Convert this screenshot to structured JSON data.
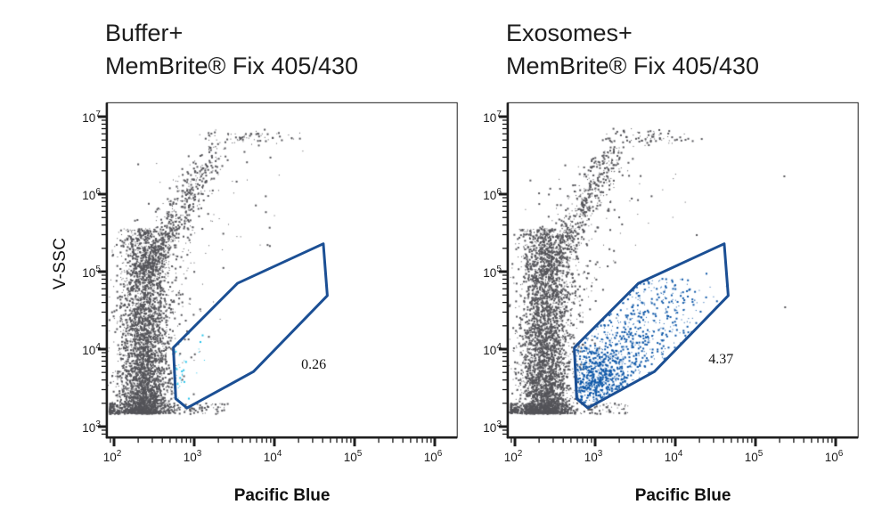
{
  "figure": {
    "background": "#ffffff",
    "axis_color": "#1f1f1f",
    "text_color": "#1c1c1c",
    "tick_base": "10"
  },
  "chart_data": [
    {
      "type": "scatter",
      "title_line1": "Buffer+",
      "title_line2": "MemBrite® Fix 405/430",
      "xlabel": "Pacific Blue",
      "ylabel": "V-SSC",
      "x_scale": "log10",
      "y_scale": "log10",
      "x_ticks_exp": [
        2,
        3,
        4,
        5,
        6
      ],
      "y_ticks_exp": [
        3,
        4,
        5,
        6,
        7
      ],
      "x_range_exp": [
        1.91,
        6.28
      ],
      "y_range_exp": [
        2.86,
        7.18
      ],
      "grid": false,
      "dot_color_ungated": "#545459",
      "dot_color_gated": "#25c3ea",
      "gate": {
        "label": "0.26",
        "color": "#1b4f94",
        "vertices_exp": [
          [
            2.74,
            4.02
          ],
          [
            3.54,
            4.85
          ],
          [
            4.61,
            5.36
          ],
          [
            4.66,
            4.69
          ],
          [
            3.74,
            3.71
          ],
          [
            2.91,
            3.24
          ],
          [
            2.77,
            3.36
          ]
        ],
        "label_pos_exp": [
          4.49,
          3.79
        ]
      },
      "populations": [
        {
          "name": "main-band",
          "kind": "vband",
          "count": 3600,
          "x_mu": 2.38,
          "x_sigma": 0.155,
          "x_clip": [
            1.92,
            2.79
          ],
          "y_min": 3.17,
          "y_max": 5.55,
          "y_shape": 1.65,
          "seed": 11,
          "gated": false
        },
        {
          "name": "floor",
          "kind": "floor",
          "count": 300,
          "x_min": 1.95,
          "x_max": 3.42,
          "x_shape": 2.4,
          "y_min": 3.16,
          "y_max": 3.3,
          "seed": 12,
          "gated": false
        },
        {
          "name": "arm",
          "kind": "diagonal",
          "count": 620,
          "from": [
            2.42,
            4.95
          ],
          "to": [
            3.3,
            6.68
          ],
          "spread": [
            0.1,
            0.14
          ],
          "t_shape": 1.3,
          "seed": 13,
          "gated": false
        },
        {
          "name": "plateau",
          "kind": "gauss",
          "count": 55,
          "mu": [
            3.82,
            6.73
          ],
          "sigma": [
            0.27,
            0.045
          ],
          "x_clip": [
            3.3,
            4.35
          ],
          "seed": 14,
          "gated": false
        },
        {
          "name": "halo",
          "kind": "gauss",
          "count": 230,
          "mu": [
            2.62,
            4.7
          ],
          "sigma": [
            0.28,
            0.6
          ],
          "seed": 15,
          "gated": false
        },
        {
          "name": "upper-sparse",
          "kind": "gauss",
          "count": 45,
          "mu": [
            3.2,
            5.9
          ],
          "sigma": [
            0.5,
            0.35
          ],
          "seed": 16,
          "gated": false
        },
        {
          "name": "gated-events",
          "kind": "mixture",
          "count": 34,
          "comps": [
            {
              "w": 0.75,
              "mu": [
                2.8,
                3.7
              ],
              "sigma": [
                0.06,
                0.26
              ]
            },
            {
              "w": 0.25,
              "mu": [
                3.02,
                4.2
              ],
              "sigma": [
                0.18,
                0.3
              ]
            }
          ],
          "seed": 17,
          "gated": true
        }
      ],
      "outliers_exp": [
        [
          4.36,
          6.55
        ]
      ]
    },
    {
      "type": "scatter",
      "title_line1": "Exosomes+",
      "title_line2": "MemBrite® Fix 405/430",
      "xlabel": "Pacific Blue",
      "ylabel": "",
      "x_scale": "log10",
      "y_scale": "log10",
      "x_ticks_exp": [
        2,
        3,
        4,
        5,
        6
      ],
      "y_ticks_exp": [
        3,
        4,
        5,
        6,
        7
      ],
      "x_range_exp": [
        1.91,
        6.28
      ],
      "y_range_exp": [
        2.86,
        7.18
      ],
      "grid": false,
      "dot_color_ungated": "#545459",
      "dot_color_gated": "#0d57a8",
      "gate": {
        "label": "4.37",
        "color": "#1b4f94",
        "vertices_exp": [
          [
            2.74,
            4.02
          ],
          [
            3.54,
            4.85
          ],
          [
            4.61,
            5.36
          ],
          [
            4.66,
            4.69
          ],
          [
            3.74,
            3.71
          ],
          [
            2.91,
            3.24
          ],
          [
            2.77,
            3.36
          ]
        ],
        "label_pos_exp": [
          4.57,
          3.86
        ]
      },
      "populations": [
        {
          "name": "main-band",
          "kind": "vband",
          "count": 3650,
          "x_mu": 2.38,
          "x_sigma": 0.155,
          "x_clip": [
            1.92,
            2.79
          ],
          "y_min": 3.17,
          "y_max": 5.55,
          "y_shape": 1.65,
          "seed": 21,
          "gated": false
        },
        {
          "name": "floor",
          "kind": "floor",
          "count": 300,
          "x_min": 1.95,
          "x_max": 3.42,
          "x_shape": 2.4,
          "y_min": 3.16,
          "y_max": 3.3,
          "seed": 22,
          "gated": false
        },
        {
          "name": "arm",
          "kind": "diagonal",
          "count": 620,
          "from": [
            2.42,
            4.95
          ],
          "to": [
            3.3,
            6.68
          ],
          "spread": [
            0.1,
            0.14
          ],
          "t_shape": 1.3,
          "seed": 23,
          "gated": false
        },
        {
          "name": "plateau",
          "kind": "gauss",
          "count": 55,
          "mu": [
            3.82,
            6.73
          ],
          "sigma": [
            0.27,
            0.045
          ],
          "x_clip": [
            3.3,
            4.35
          ],
          "seed": 24,
          "gated": false
        },
        {
          "name": "halo",
          "kind": "gauss",
          "count": 230,
          "mu": [
            2.62,
            4.7
          ],
          "sigma": [
            0.28,
            0.6
          ],
          "seed": 25,
          "gated": false
        },
        {
          "name": "upper-sparse",
          "kind": "gauss",
          "count": 50,
          "mu": [
            3.2,
            5.9
          ],
          "sigma": [
            0.5,
            0.35
          ],
          "seed": 26,
          "gated": false
        },
        {
          "name": "gated-events",
          "kind": "mixture",
          "count": 1120,
          "comps": [
            {
              "w": 0.58,
              "mu": [
                3.0,
                3.6
              ],
              "sigma": [
                0.27,
                0.27
              ]
            },
            {
              "w": 0.42,
              "mu": [
                3.55,
                4.3
              ],
              "sigma": [
                0.5,
                0.48
              ]
            }
          ],
          "seed": 27,
          "gated": true
        }
      ],
      "outliers_exp": [
        [
          5.36,
          6.23
        ],
        [
          5.37,
          4.54
        ],
        [
          4.13,
          5.89
        ]
      ]
    }
  ]
}
